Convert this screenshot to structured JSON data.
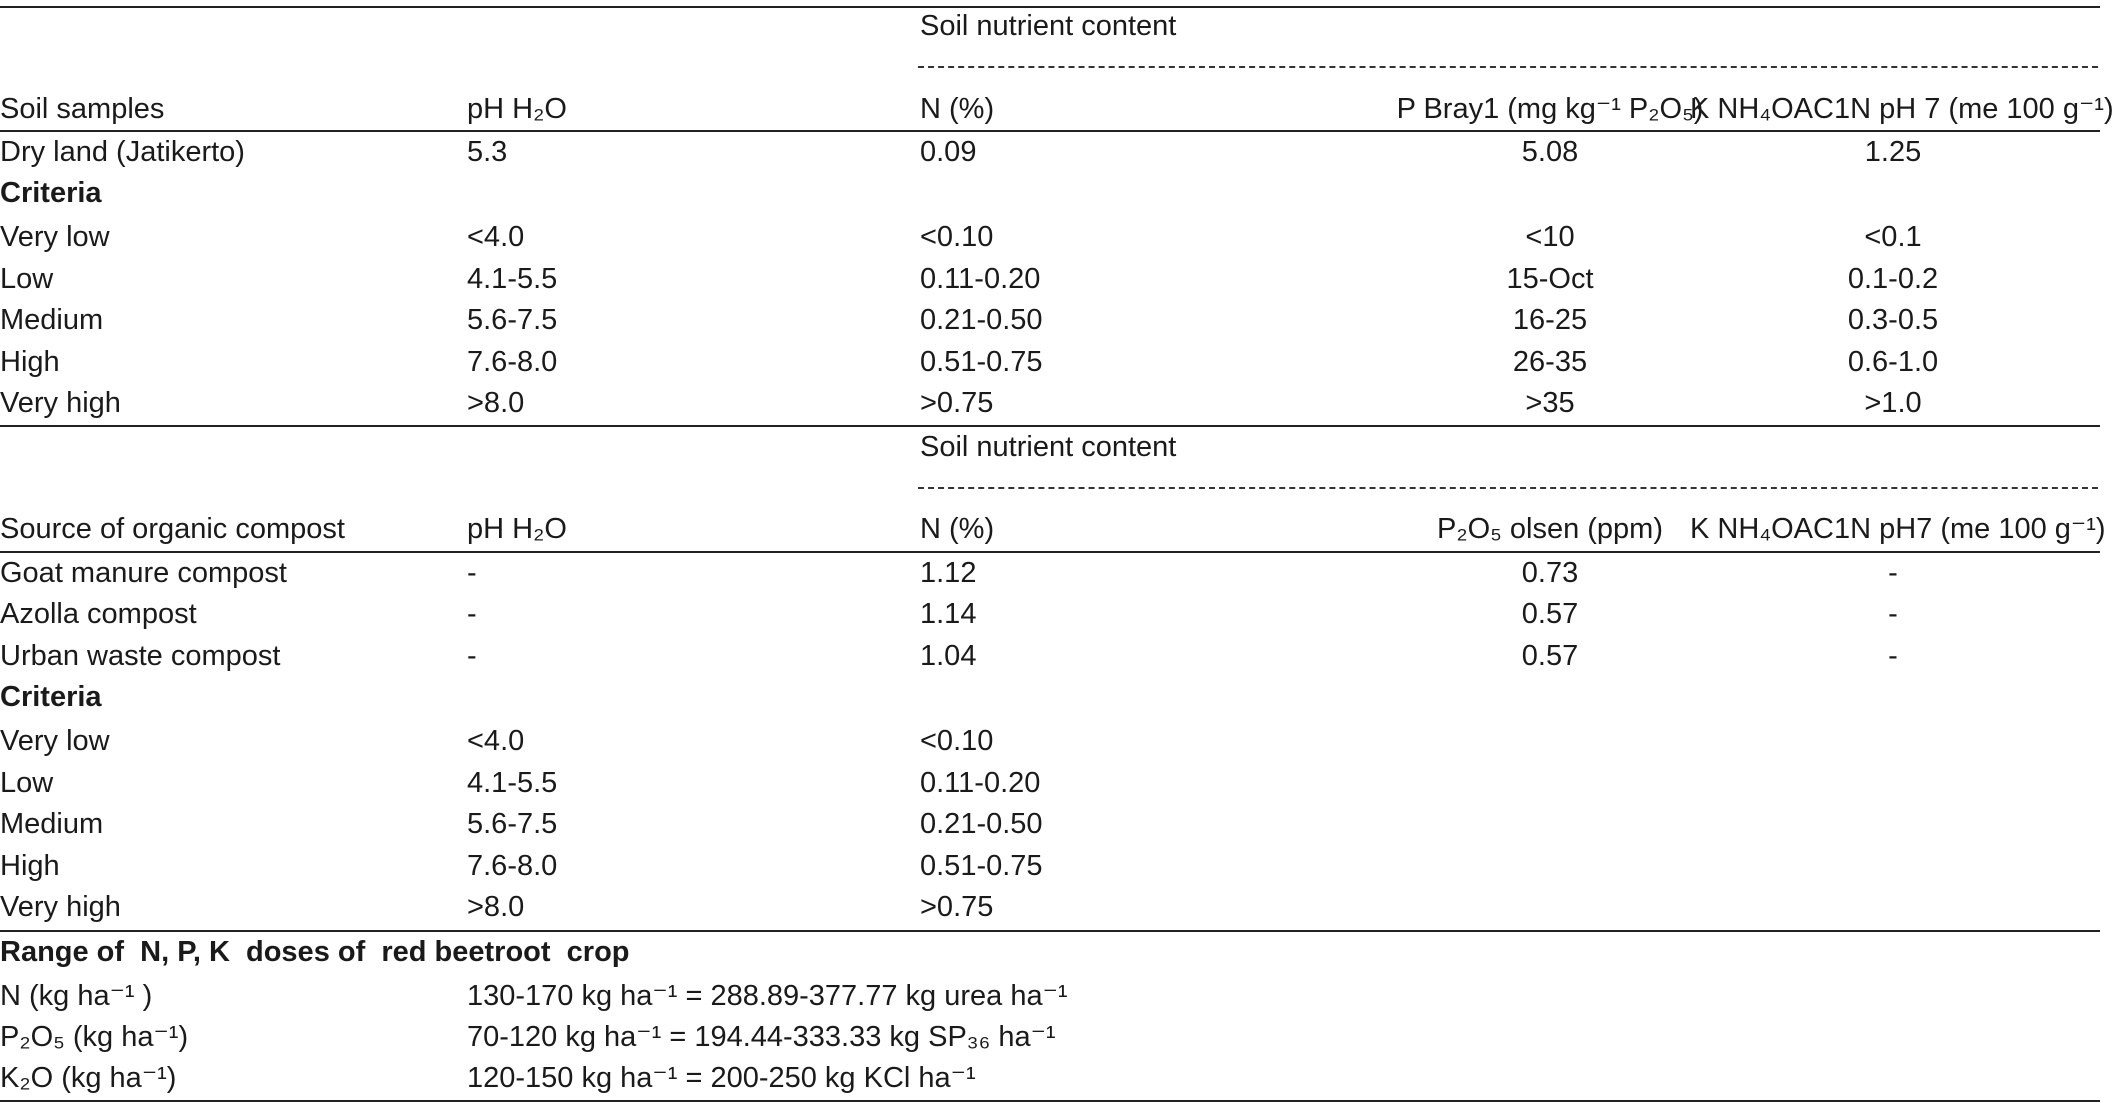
{
  "table1": {
    "group_header": "Soil nutrient content",
    "dash_line": "----------------------------------------------------------------------------------------------------------------------------------------------------------------------------------------------------------------",
    "columns": [
      "Soil samples",
      "pH H₂O",
      "N (%)",
      "P Bray1 (mg kg⁻¹ P₂O₅)",
      "K NH₄OAC1N pH 7 (me 100 g⁻¹)"
    ],
    "sample_row": [
      "Dry land (Jatikerto)",
      "5.3",
      "0.09",
      "5.08",
      "1.25"
    ],
    "criteria_label": "Criteria",
    "criteria_rows": [
      [
        "Very low",
        "<4.0",
        "<0.10",
        "<10",
        "<0.1"
      ],
      [
        "Low",
        "4.1-5.5",
        "0.11-0.20",
        "15-Oct",
        "0.1-0.2"
      ],
      [
        "Medium",
        "5.6-7.5",
        "0.21-0.50",
        "16-25",
        "0.3-0.5"
      ],
      [
        "High",
        "7.6-8.0",
        "0.51-0.75",
        "26-35",
        "0.6-1.0"
      ],
      [
        "Very high",
        ">8.0",
        ">0.75",
        ">35",
        ">1.0"
      ]
    ]
  },
  "table2": {
    "group_header": "Soil nutrient content",
    "dash_line": "----------------------------------------------------------------------------------------------------------------------------------------------------------------------------------------------------------------",
    "columns": [
      "Source of organic compost",
      "pH H₂O",
      "N (%)",
      "P₂O₅ olsen (ppm)",
      "K NH₄OAC1N pH7 (me 100 g⁻¹)"
    ],
    "compost_rows": [
      [
        "Goat manure compost",
        "-",
        "1.12",
        "0.73",
        "-"
      ],
      [
        "Azolla compost",
        "-",
        "1.14",
        "0.57",
        "-"
      ],
      [
        "Urban waste compost",
        "-",
        "1.04",
        "0.57",
        "-"
      ]
    ],
    "criteria_label": "Criteria",
    "criteria_rows": [
      [
        "Very low",
        "<4.0",
        "<0.10"
      ],
      [
        "Low",
        "4.1-5.5",
        "0.11-0.20"
      ],
      [
        "Medium",
        "5.6-7.5",
        "0.21-0.50"
      ],
      [
        "High",
        "7.6-8.0",
        "0.51-0.75"
      ],
      [
        "Very high",
        ">8.0",
        ">0.75"
      ]
    ]
  },
  "table3": {
    "title": "Range of  N, P, K  doses of  red beetroot  crop",
    "rows": [
      [
        "N (kg ha⁻¹ )",
        "130-170 kg ha⁻¹ = 288.89-377.77 kg urea ha⁻¹"
      ],
      [
        "P₂O₅ (kg ha⁻¹)",
        "70-120 kg ha⁻¹ = 194.44-333.33 kg SP₃₆ ha⁻¹"
      ],
      [
        "K₂O (kg ha⁻¹)",
        "120-150 kg ha⁻¹ = 200-250 kg KCl ha⁻¹"
      ]
    ]
  }
}
